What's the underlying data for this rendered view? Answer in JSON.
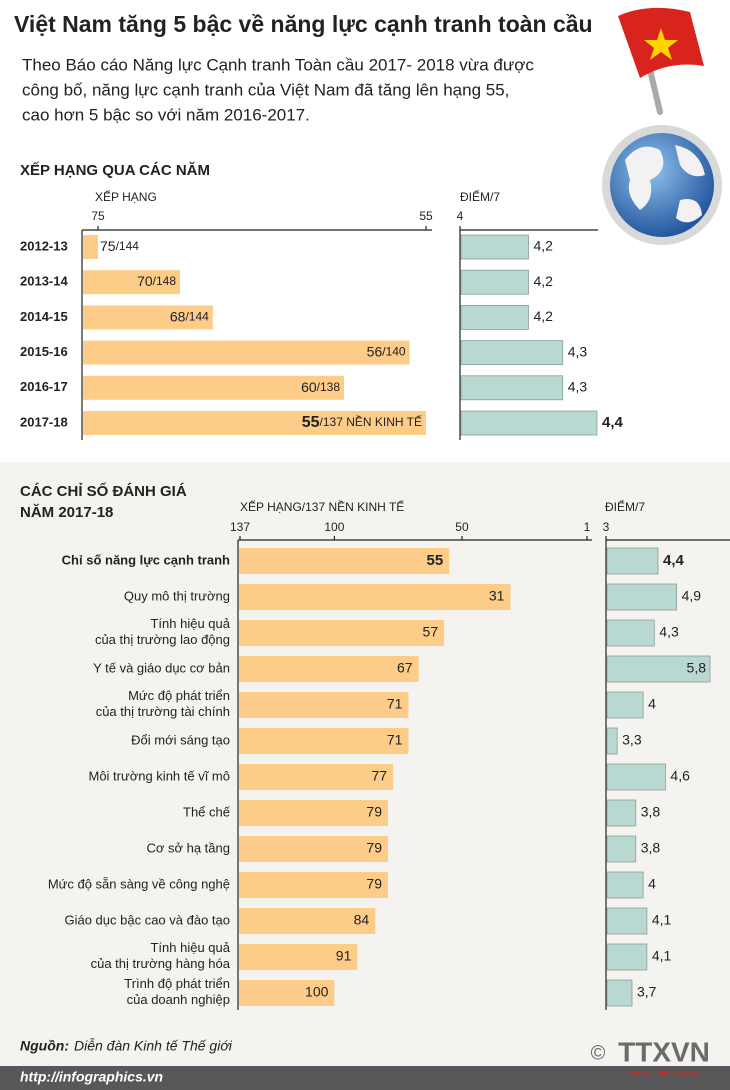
{
  "header": {
    "title": "Việt Nam tăng 5 bậc về năng lực cạnh tranh toàn cầu",
    "intro": [
      "Theo Báo cáo Năng lực Cạnh tranh Toàn cầu 2017- 2018 vừa được",
      "công bố, năng lực cạnh tranh của Việt Nam đã tăng lên hạng 55,",
      "cao hơn 5 bậc so với năm 2016-2017."
    ]
  },
  "chart_data": [
    {
      "type": "bar",
      "title": "XẾP HẠNG QUA CÁC NĂM",
      "xlabel": "XẾP HẠNG",
      "categories": [
        "2012-13",
        "2013-14",
        "2014-15",
        "2015-16",
        "2016-17",
        "2017-18"
      ],
      "values": [
        75,
        70,
        68,
        56,
        60,
        55
      ],
      "value_labels": [
        "75/144",
        "70/148",
        "68/144",
        "56/140",
        "60/138",
        "55/137 NỀN KINH TẾ"
      ],
      "xlim": [
        75,
        55
      ],
      "xticks": [
        75,
        55
      ],
      "color": "#fccc88"
    },
    {
      "type": "bar",
      "xlabel": "ĐIỂM/7",
      "values": [
        4.2,
        4.2,
        4.2,
        4.3,
        4.3,
        4.4
      ],
      "value_labels": [
        "4,2",
        "4,2",
        "4,2",
        "4,3",
        "4,3",
        "4,4"
      ],
      "xlim": [
        4,
        4.4
      ],
      "xticks": [
        4
      ],
      "color": "#b9d8d1"
    },
    {
      "type": "bar",
      "title": "CÁC CHỈ SỐ ĐÁNH GIÁ",
      "subtitle": "NĂM 2017-18",
      "xlabel": "XẾP HẠNG/137 NỀN KINH TẾ",
      "categories": [
        "Chỉ số năng lực cạnh tranh",
        "Quy mô thị trường",
        "Tính hiệu quả\ncủa thị trường lao động",
        "Y tế và giáo dục cơ bản",
        "Mức độ phát triển\ncủa thị trường tài chính",
        "Đổi mới sáng tạo",
        "Môi trường kinh tế vĩ mô",
        "Thể chế",
        "Cơ sở hạ tầng",
        "Mức độ sẵn sàng về công nghệ",
        "Giáo dục bậc cao và đào tạo",
        "Tính hiệu quả\ncủa thị trường hàng hóa",
        "Trình độ phát triển\ncủa doanh nghiệp"
      ],
      "values": [
        55,
        31,
        57,
        67,
        71,
        71,
        77,
        79,
        79,
        79,
        84,
        91,
        100
      ],
      "xlim": [
        137,
        1
      ],
      "xticks": [
        137,
        100,
        50,
        1
      ],
      "color": "#fccc88"
    },
    {
      "type": "bar",
      "xlabel": "ĐIỂM/7",
      "values": [
        4.4,
        4.9,
        4.3,
        5.8,
        4,
        3.3,
        4.6,
        3.8,
        3.8,
        4,
        4.1,
        4.1,
        3.7
      ],
      "value_labels": [
        "4,4",
        "4,9",
        "4,3",
        "5,8",
        "4",
        "3,3",
        "4,6",
        "3,8",
        "3,8",
        "4",
        "4,1",
        "4,1",
        "3,7"
      ],
      "xlim": [
        3,
        5.8
      ],
      "xticks": [
        3
      ],
      "color": "#b9d8d1"
    }
  ],
  "footer": {
    "source_label": "Nguồn:",
    "source": "Diễn đàn Kinh tế Thế giới",
    "url": "http://infographics.vn",
    "copyright": "©",
    "logo": "TTXVN",
    "logo_sub": "Vietnam News Agency"
  }
}
